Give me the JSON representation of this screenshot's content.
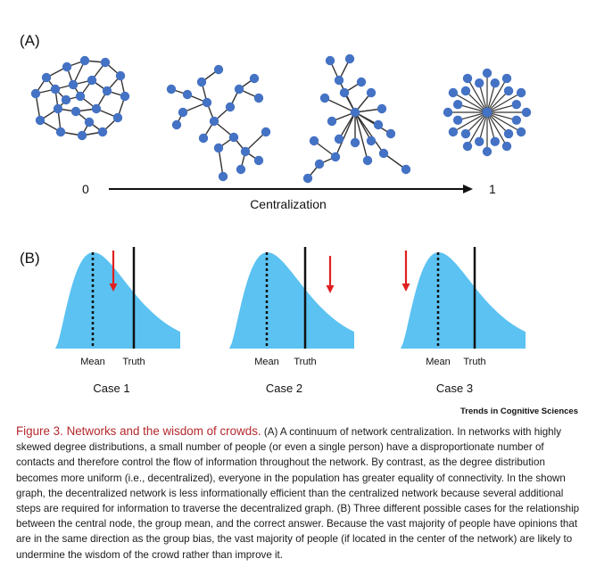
{
  "panel_a": {
    "label": "(A)",
    "axis_min": "0",
    "axis_max": "1",
    "axis_label": "Centralization",
    "node_color": "#4472c4",
    "edge_color": "#333333"
  },
  "panel_b": {
    "label": "(B)",
    "fill_color": "#5bc2f2",
    "arrow_color": "#e02020",
    "cases": [
      {
        "title": "Case 1",
        "mean_label": "Mean",
        "truth_label": "Truth"
      },
      {
        "title": "Case 2",
        "mean_label": "Mean",
        "truth_label": "Truth"
      },
      {
        "title": "Case 3",
        "mean_label": "Mean",
        "truth_label": "Truth"
      }
    ]
  },
  "source": "Trends in Cognitive Sciences",
  "caption": {
    "title": "Figure 3. Networks and the wisdom of crowds.",
    "body": " (A) A continuum of network centralization. In networks with highly skewed degree distributions, a small number of people (or even a single person) have a disproportionate number of contacts and therefore control the flow of information throughout the network. By contrast, as the degree distribution becomes more uniform (i.e., decentralized), everyone in the population has greater equality of connectivity. In the shown graph, the decentralized network is less informationally efficient than the centralized network because several additional steps are required for information to traverse the decentralized graph. (B) Three different possible cases for the relationship between the central node, the group mean, and the correct answer. Because the vast majority of people have opinions that are in the same direction as the group bias, the vast majority of people (if located in the center of the network) are likely to undermine the wisdom of the crowd rather than improve it."
  }
}
